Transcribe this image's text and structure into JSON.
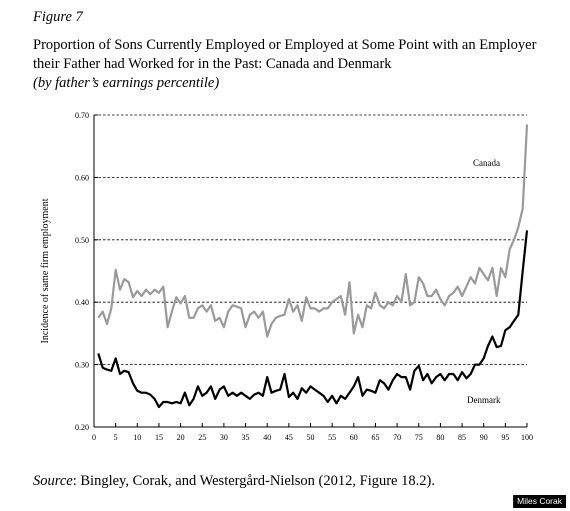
{
  "chart_data": {
    "type": "line",
    "figure_label": "Figure 7",
    "title": "Proportion of Sons Currently Employed or Employed at Some Point with an Employer their Father had Worked for in the Past: Canada and Denmark",
    "title_note": "(by father’s earnings percentile)",
    "y_label": "Incidence of same firm employment",
    "source_label": "Source",
    "source_text": ": Bingley, Corak, and Westergård-Nielson (2012, Figure 18.2).",
    "watermark": "Miles Corak",
    "annotations": [
      "Canada",
      "Denmark"
    ],
    "xlim": [
      0,
      100
    ],
    "xticks": [
      0,
      5,
      10,
      15,
      20,
      25,
      30,
      35,
      40,
      45,
      50,
      55,
      60,
      65,
      70,
      75,
      80,
      85,
      90,
      95,
      100
    ],
    "ylim": [
      0.2,
      0.7
    ],
    "yticks": [
      {
        "value": 0.2,
        "label": "0.20"
      },
      {
        "value": 0.3,
        "label": "0.30"
      },
      {
        "value": 0.4,
        "label": "0.40"
      },
      {
        "value": 0.5,
        "label": "0.50"
      },
      {
        "value": 0.6,
        "label": "0.60"
      },
      {
        "value": 0.7,
        "label": "0.70"
      }
    ],
    "grid": true,
    "x": [
      1,
      2,
      3,
      4,
      5,
      6,
      7,
      8,
      9,
      10,
      11,
      12,
      13,
      14,
      15,
      16,
      17,
      18,
      19,
      20,
      21,
      22,
      23,
      24,
      25,
      26,
      27,
      28,
      29,
      30,
      31,
      32,
      33,
      34,
      35,
      36,
      37,
      38,
      39,
      40,
      41,
      42,
      43,
      44,
      45,
      46,
      47,
      48,
      49,
      50,
      51,
      52,
      53,
      54,
      55,
      56,
      57,
      58,
      59,
      60,
      61,
      62,
      63,
      64,
      65,
      66,
      67,
      68,
      69,
      70,
      71,
      72,
      73,
      74,
      75,
      76,
      77,
      78,
      79,
      80,
      81,
      82,
      83,
      84,
      85,
      86,
      87,
      88,
      89,
      90,
      91,
      92,
      93,
      94,
      95,
      96,
      97,
      98,
      99,
      100
    ],
    "series": [
      {
        "name": "Canada",
        "color": "#9a9a9a",
        "values": [
          0.375,
          0.385,
          0.365,
          0.39,
          0.452,
          0.42,
          0.437,
          0.432,
          0.408,
          0.418,
          0.41,
          0.42,
          0.413,
          0.42,
          0.415,
          0.425,
          0.36,
          0.385,
          0.408,
          0.398,
          0.41,
          0.375,
          0.375,
          0.39,
          0.395,
          0.385,
          0.395,
          0.37,
          0.375,
          0.36,
          0.385,
          0.395,
          0.393,
          0.39,
          0.36,
          0.38,
          0.385,
          0.375,
          0.385,
          0.345,
          0.365,
          0.375,
          0.378,
          0.38,
          0.405,
          0.385,
          0.395,
          0.37,
          0.408,
          0.39,
          0.39,
          0.385,
          0.39,
          0.39,
          0.4,
          0.405,
          0.41,
          0.38,
          0.432,
          0.35,
          0.38,
          0.36,
          0.395,
          0.39,
          0.415,
          0.395,
          0.39,
          0.4,
          0.395,
          0.41,
          0.4,
          0.445,
          0.395,
          0.4,
          0.44,
          0.43,
          0.41,
          0.41,
          0.42,
          0.405,
          0.395,
          0.41,
          0.415,
          0.425,
          0.41,
          0.425,
          0.44,
          0.43,
          0.455,
          0.445,
          0.435,
          0.455,
          0.41,
          0.455,
          0.44,
          0.485,
          0.5,
          0.52,
          0.55,
          0.685
        ]
      },
      {
        "name": "Denmark",
        "color": "#000000",
        "values": [
          0.318,
          0.295,
          0.292,
          0.29,
          0.31,
          0.285,
          0.29,
          0.288,
          0.27,
          0.258,
          0.255,
          0.255,
          0.252,
          0.245,
          0.232,
          0.24,
          0.24,
          0.238,
          0.24,
          0.238,
          0.255,
          0.235,
          0.245,
          0.265,
          0.25,
          0.255,
          0.265,
          0.245,
          0.26,
          0.265,
          0.25,
          0.255,
          0.25,
          0.255,
          0.25,
          0.245,
          0.252,
          0.255,
          0.25,
          0.28,
          0.255,
          0.258,
          0.26,
          0.285,
          0.248,
          0.255,
          0.245,
          0.262,
          0.255,
          0.265,
          0.26,
          0.255,
          0.25,
          0.24,
          0.25,
          0.238,
          0.25,
          0.245,
          0.255,
          0.265,
          0.28,
          0.25,
          0.26,
          0.258,
          0.255,
          0.275,
          0.27,
          0.26,
          0.275,
          0.285,
          0.28,
          0.28,
          0.26,
          0.29,
          0.298,
          0.275,
          0.285,
          0.27,
          0.28,
          0.285,
          0.275,
          0.285,
          0.285,
          0.275,
          0.288,
          0.278,
          0.285,
          0.3,
          0.3,
          0.31,
          0.33,
          0.345,
          0.328,
          0.33,
          0.355,
          0.36,
          0.37,
          0.38,
          0.45,
          0.515
        ]
      }
    ]
  }
}
